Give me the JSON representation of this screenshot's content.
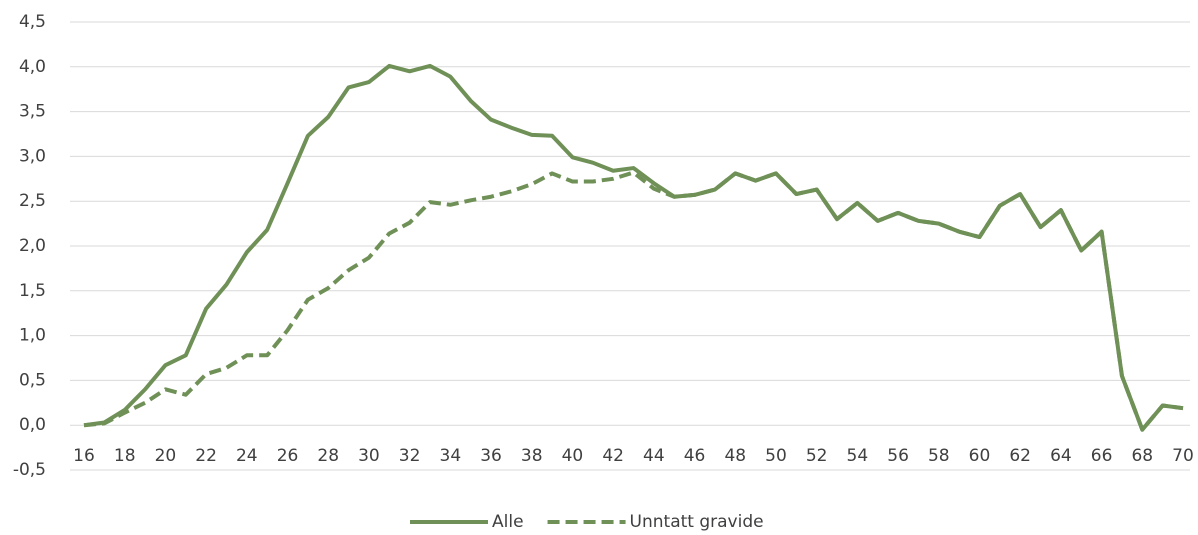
{
  "chart_data": {
    "type": "line",
    "x": [
      16,
      17,
      18,
      19,
      20,
      21,
      22,
      23,
      24,
      25,
      26,
      27,
      28,
      29,
      30,
      31,
      32,
      33,
      34,
      35,
      36,
      37,
      38,
      39,
      40,
      41,
      42,
      43,
      44,
      45,
      46,
      47,
      48,
      49,
      50,
      51,
      52,
      53,
      54,
      55,
      56,
      57,
      58,
      59,
      60,
      61,
      62,
      63,
      64,
      65,
      66,
      67,
      68,
      69,
      70
    ],
    "series": [
      {
        "name": "Unntatt gravide",
        "color": "#6f9056",
        "dash": true,
        "values": [
          0.0,
          0.02,
          0.14,
          0.25,
          0.4,
          0.34,
          0.57,
          0.64,
          0.78,
          0.78,
          1.06,
          1.4,
          1.53,
          1.73,
          1.87,
          2.14,
          2.26,
          2.49,
          2.46,
          2.51,
          2.55,
          2.61,
          2.69,
          2.81,
          2.72,
          2.72,
          2.75,
          2.82,
          2.64,
          2.55,
          2.57,
          2.63,
          2.81,
          2.73,
          2.81,
          2.58,
          2.63,
          2.3,
          2.48,
          2.28,
          2.37,
          2.28,
          2.25,
          2.16,
          2.1,
          2.45,
          2.58,
          2.21,
          2.4,
          1.95,
          2.16,
          0.55,
          -0.05,
          0.22,
          0.19
        ]
      },
      {
        "name": "Alle",
        "color": "#6f9056",
        "dash": false,
        "values": [
          0.0,
          0.03,
          0.17,
          0.4,
          0.67,
          0.78,
          1.3,
          1.57,
          1.93,
          2.18,
          2.7,
          3.23,
          3.44,
          3.77,
          3.83,
          4.01,
          3.95,
          4.01,
          3.89,
          3.62,
          3.41,
          3.32,
          3.24,
          3.23,
          2.99,
          2.93,
          2.84,
          2.87,
          2.7,
          2.55,
          2.57,
          2.63,
          2.81,
          2.73,
          2.81,
          2.58,
          2.63,
          2.3,
          2.48,
          2.28,
          2.37,
          2.28,
          2.25,
          2.16,
          2.1,
          2.45,
          2.58,
          2.21,
          2.4,
          1.95,
          2.16,
          0.55,
          -0.05,
          0.22,
          0.19
        ]
      }
    ],
    "xlim": [
      16,
      70
    ],
    "xticks": [
      16,
      18,
      20,
      22,
      24,
      26,
      28,
      30,
      32,
      34,
      36,
      38,
      40,
      42,
      44,
      46,
      48,
      50,
      52,
      54,
      56,
      58,
      60,
      62,
      64,
      66,
      68,
      70
    ],
    "ylim": [
      -0.5,
      4.5
    ],
    "yticks": [
      {
        "value": -0.5,
        "label": "-0,5"
      },
      {
        "value": 0,
        "label": "0,0"
      },
      {
        "value": 0.5,
        "label": "0,5"
      },
      {
        "value": 1,
        "label": "1,0"
      },
      {
        "value": 1.5,
        "label": "1,5"
      },
      {
        "value": 2,
        "label": "2,0"
      },
      {
        "value": 2.5,
        "label": "2,5"
      },
      {
        "value": 3,
        "label": "3,0"
      },
      {
        "value": 3.5,
        "label": "3,5"
      },
      {
        "value": 4,
        "label": "4,0"
      },
      {
        "value": 4.5,
        "label": "4,5"
      }
    ],
    "grid": true,
    "legend": "bottom"
  }
}
